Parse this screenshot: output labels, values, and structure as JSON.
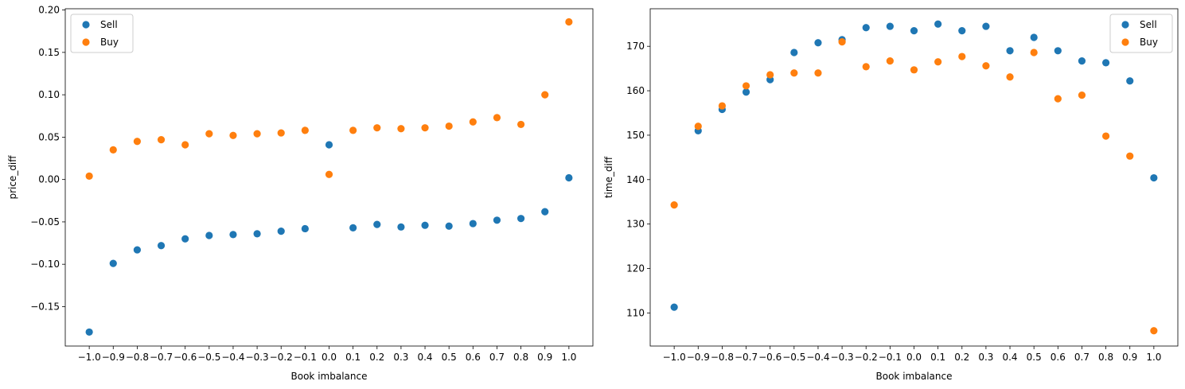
{
  "chart_data": [
    {
      "type": "scatter",
      "xlabel": "Book imbalance",
      "ylabel": "price_diff",
      "xlim": [
        -1.1,
        1.1
      ],
      "ylim": [
        -0.1965,
        0.2015
      ],
      "xticks": [
        "−1.0",
        "−0.9",
        "−0.8",
        "−0.7",
        "−0.6",
        "−0.5",
        "−0.4",
        "−0.3",
        "−0.2",
        "−0.1",
        "0.0",
        "0.1",
        "0.2",
        "0.3",
        "0.4",
        "0.5",
        "0.6",
        "0.7",
        "0.8",
        "0.9",
        "1.0"
      ],
      "yticks": [
        -0.15,
        -0.1,
        -0.05,
        0.0,
        0.05,
        0.1,
        0.15,
        0.2
      ],
      "ytick_labels": [
        "−0.15",
        "−0.10",
        "−0.05",
        "0.00",
        "0.05",
        "0.10",
        "0.15",
        "0.20"
      ],
      "legend_position": "top-left",
      "x": [
        -1.0,
        -0.9,
        -0.8,
        -0.7,
        -0.6,
        -0.5,
        -0.4,
        -0.3,
        -0.2,
        -0.1,
        0.0,
        0.1,
        0.2,
        0.3,
        0.4,
        0.5,
        0.6,
        0.7,
        0.8,
        0.9,
        1.0
      ],
      "series": [
        {
          "name": "Sell",
          "color": "#1f77b4",
          "values": [
            -0.18,
            -0.099,
            -0.083,
            -0.078,
            -0.07,
            -0.066,
            -0.065,
            -0.064,
            -0.061,
            -0.058,
            0.041,
            -0.057,
            -0.053,
            -0.056,
            -0.054,
            -0.055,
            -0.052,
            -0.048,
            -0.046,
            -0.038,
            0.002
          ]
        },
        {
          "name": "Buy",
          "color": "#ff7f0e",
          "values": [
            0.004,
            0.035,
            0.045,
            0.047,
            0.041,
            0.054,
            0.052,
            0.054,
            0.055,
            0.058,
            0.006,
            0.058,
            0.061,
            0.06,
            0.061,
            0.063,
            0.068,
            0.073,
            0.065,
            0.1,
            0.186
          ]
        }
      ]
    },
    {
      "type": "scatter",
      "xlabel": "Book imbalance",
      "ylabel": "time_diff",
      "xlim": [
        -1.1,
        1.1
      ],
      "ylim": [
        102.55,
        178.45
      ],
      "xticks": [
        "−1.0",
        "−0.9",
        "−0.8",
        "−0.7",
        "−0.6",
        "−0.5",
        "−0.4",
        "−0.3",
        "−0.2",
        "−0.1",
        "0.0",
        "0.1",
        "0.2",
        "0.3",
        "0.4",
        "0.5",
        "0.6",
        "0.7",
        "0.8",
        "0.9",
        "1.0"
      ],
      "yticks": [
        110,
        120,
        130,
        140,
        150,
        160,
        170
      ],
      "ytick_labels": [
        "110",
        "120",
        "130",
        "140",
        "150",
        "160",
        "170"
      ],
      "legend_position": "top-right",
      "x": [
        -1.0,
        -0.9,
        -0.8,
        -0.7,
        -0.6,
        -0.5,
        -0.4,
        -0.3,
        -0.2,
        -0.1,
        0.0,
        0.1,
        0.2,
        0.3,
        0.4,
        0.5,
        0.6,
        0.7,
        0.8,
        0.9,
        1.0
      ],
      "series": [
        {
          "name": "Sell",
          "color": "#1f77b4",
          "values": [
            111.3,
            151.0,
            155.8,
            159.7,
            162.5,
            168.6,
            170.8,
            171.5,
            174.2,
            174.5,
            173.5,
            175.0,
            173.5,
            174.5,
            169.0,
            172.0,
            169.0,
            166.7,
            166.3,
            162.2,
            140.4
          ]
        },
        {
          "name": "Buy",
          "color": "#ff7f0e",
          "values": [
            134.3,
            152.0,
            156.6,
            161.1,
            163.6,
            164.0,
            164.0,
            171.0,
            165.4,
            166.7,
            164.7,
            166.5,
            167.7,
            165.6,
            163.1,
            168.6,
            158.2,
            159.0,
            149.8,
            145.3,
            106.0
          ]
        }
      ]
    }
  ]
}
